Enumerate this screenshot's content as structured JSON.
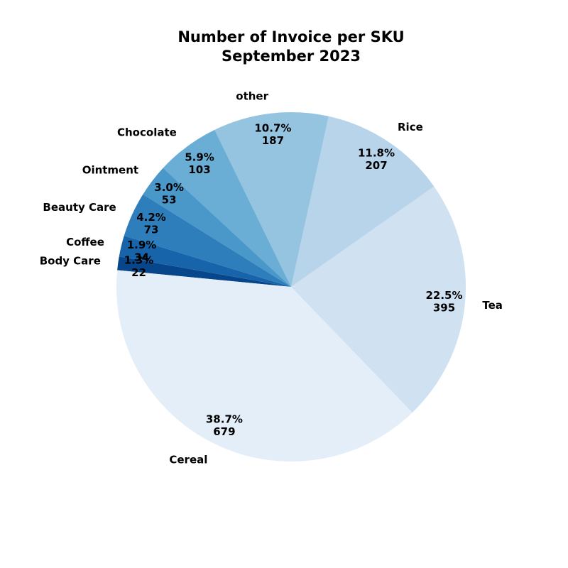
{
  "chart_data": {
    "type": "pie",
    "title_line1": "Number of Invoice per SKU",
    "title_line2": "September 2023",
    "start_angle_deg": 170,
    "direction": "counterclockwise",
    "slices": [
      {
        "label": "Body Care",
        "value": 22,
        "pct": "1.3%",
        "color": "#08468b"
      },
      {
        "label": "Cereal",
        "value": 679,
        "pct": "38.7%",
        "color": "#e3eef8"
      },
      {
        "label": "Tea",
        "value": 395,
        "pct": "22.5%",
        "color": "#d0e1f2"
      },
      {
        "label": "Rice",
        "value": 207,
        "pct": "11.8%",
        "color": "#b7d4ea"
      },
      {
        "label": "other",
        "value": 187,
        "pct": "10.7%",
        "color": "#94c4df"
      },
      {
        "label": "Chocolate",
        "value": 103,
        "pct": "5.9%",
        "color": "#6aaed6"
      },
      {
        "label": "Ointment",
        "value": 53,
        "pct": "3.0%",
        "color": "#4a98c9"
      },
      {
        "label": "Beauty Care",
        "value": 73,
        "pct": "4.2%",
        "color": "#2e7ebc"
      },
      {
        "label": "Coffee",
        "value": 34,
        "pct": "1.9%",
        "color": "#1764ab"
      }
    ]
  }
}
